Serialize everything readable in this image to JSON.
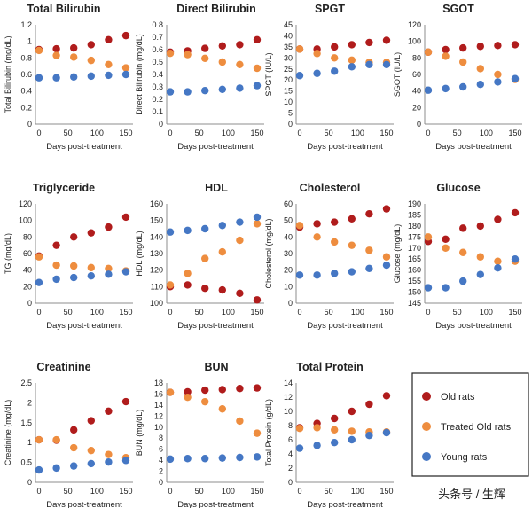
{
  "watermark": "头条号 / 生辉",
  "legend": [
    {
      "label": "Old rats",
      "color": "#b01c1c"
    },
    {
      "label": "Treated Old rats",
      "color": "#ee8d3f"
    },
    {
      "label": "Young rats",
      "color": "#4577c4"
    }
  ],
  "chart_data": [
    {
      "type": "scatter",
      "title": "Total Bilirubin",
      "xlabel": "Days post-treatment",
      "ylabel": "Total Bilirubin (mg/dL)",
      "xlim": [
        0,
        150
      ],
      "xticks": [
        0,
        50,
        100,
        150
      ],
      "ylim": [
        0,
        1.2
      ],
      "yticks": [
        0,
        0.2,
        0.4,
        0.6,
        0.8,
        1,
        1.2
      ],
      "yticklabels": [
        "0",
        "0.2",
        "0.4",
        "0.6",
        "0.8",
        "1",
        "1.2"
      ],
      "x": [
        0,
        30,
        60,
        90,
        120,
        150
      ],
      "series": [
        {
          "name": "Old rats",
          "values": [
            0.9,
            0.91,
            0.92,
            0.96,
            1.02,
            1.07
          ]
        },
        {
          "name": "Treated Old rats",
          "values": [
            0.89,
            0.83,
            0.81,
            0.77,
            0.72,
            0.68
          ]
        },
        {
          "name": "Young rats",
          "values": [
            0.56,
            0.56,
            0.57,
            0.58,
            0.59,
            0.6
          ]
        }
      ]
    },
    {
      "type": "scatter",
      "title": "Direct Bilirubin",
      "xlabel": "Days post-treatment",
      "ylabel": "Direct Bilirubin (mg/dL)",
      "xlim": [
        0,
        150
      ],
      "xticks": [
        0,
        50,
        100,
        150
      ],
      "ylim": [
        0,
        0.8
      ],
      "yticks": [
        0,
        0.1,
        0.2,
        0.3,
        0.4,
        0.5,
        0.6,
        0.7,
        0.8
      ],
      "yticklabels": [
        "0",
        "0.1",
        "0.2",
        "0.3",
        "0.4",
        "0.5",
        "0.6",
        "0.7",
        "0.8"
      ],
      "x": [
        0,
        30,
        60,
        90,
        120,
        150
      ],
      "series": [
        {
          "name": "Old rats",
          "values": [
            0.58,
            0.59,
            0.61,
            0.63,
            0.64,
            0.68
          ]
        },
        {
          "name": "Treated Old rats",
          "values": [
            0.57,
            0.56,
            0.53,
            0.5,
            0.48,
            0.45
          ]
        },
        {
          "name": "Young rats",
          "values": [
            0.26,
            0.26,
            0.27,
            0.28,
            0.29,
            0.31
          ]
        }
      ]
    },
    {
      "type": "scatter",
      "title": "SPGT",
      "xlabel": "Days post-treatment",
      "ylabel": "SPGT (IU/L)",
      "xlim": [
        0,
        150
      ],
      "xticks": [
        0,
        50,
        100,
        150
      ],
      "ylim": [
        0,
        45
      ],
      "yticks": [
        0,
        5,
        10,
        15,
        20,
        25,
        30,
        35,
        40,
        45
      ],
      "yticklabels": [
        "0",
        "5",
        "10",
        "15",
        "20",
        "25",
        "30",
        "35",
        "40",
        "45"
      ],
      "x": [
        0,
        30,
        60,
        90,
        120,
        150
      ],
      "series": [
        {
          "name": "Old rats",
          "values": [
            34,
            34,
            35,
            36,
            37,
            38
          ]
        },
        {
          "name": "Treated Old rats",
          "values": [
            34,
            32,
            30,
            29,
            28,
            28
          ]
        },
        {
          "name": "Young rats",
          "values": [
            22,
            23,
            24,
            26,
            27,
            27
          ]
        }
      ]
    },
    {
      "type": "scatter",
      "title": "SGOT",
      "xlabel": "Days post-treatment",
      "ylabel": "SGOT (IU/L)",
      "xlim": [
        0,
        150
      ],
      "xticks": [
        0,
        50,
        100,
        150
      ],
      "ylim": [
        0,
        120
      ],
      "yticks": [
        0,
        20,
        40,
        60,
        80,
        100,
        120
      ],
      "yticklabels": [
        "0",
        "20",
        "40",
        "60",
        "80",
        "100",
        "120"
      ],
      "x": [
        0,
        30,
        60,
        90,
        120,
        150
      ],
      "series": [
        {
          "name": "Old rats",
          "values": [
            87,
            90,
            92,
            94,
            95,
            96
          ]
        },
        {
          "name": "Treated Old rats",
          "values": [
            87,
            82,
            75,
            67,
            60,
            54
          ]
        },
        {
          "name": "Young rats",
          "values": [
            41,
            43,
            45,
            48,
            51,
            55
          ]
        }
      ]
    },
    {
      "type": "scatter",
      "title": "Triglyceride",
      "xlabel": "Days post-treatment",
      "ylabel": "TG (mg/dL)",
      "xlim": [
        0,
        150
      ],
      "xticks": [
        0,
        50,
        100,
        150
      ],
      "ylim": [
        0,
        120
      ],
      "yticks": [
        0,
        20,
        40,
        60,
        80,
        100,
        120
      ],
      "yticklabels": [
        "0",
        "20",
        "40",
        "60",
        "80",
        "100",
        "120"
      ],
      "x": [
        0,
        30,
        60,
        90,
        120,
        150
      ],
      "series": [
        {
          "name": "Old rats",
          "values": [
            57,
            70,
            80,
            85,
            92,
            104
          ]
        },
        {
          "name": "Treated Old rats",
          "values": [
            56,
            46,
            45,
            43,
            42,
            39
          ]
        },
        {
          "name": "Young rats",
          "values": [
            25,
            29,
            31,
            33,
            35,
            38
          ]
        }
      ]
    },
    {
      "type": "scatter",
      "title": "HDL",
      "xlabel": "Days post-treatment",
      "ylabel": "HDL (mg/dL)",
      "xlim": [
        0,
        150
      ],
      "xticks": [
        0,
        50,
        100,
        150
      ],
      "ylim": [
        100,
        160
      ],
      "yticks": [
        100,
        110,
        120,
        130,
        140,
        150,
        160
      ],
      "yticklabels": [
        "100",
        "110",
        "120",
        "130",
        "140",
        "150",
        "160"
      ],
      "x": [
        0,
        30,
        60,
        90,
        120,
        150
      ],
      "series": [
        {
          "name": "Old rats",
          "values": [
            110,
            111,
            109,
            108,
            106,
            102
          ]
        },
        {
          "name": "Treated Old rats",
          "values": [
            111,
            118,
            127,
            131,
            138,
            148
          ]
        },
        {
          "name": "Young rats",
          "values": [
            143,
            144,
            145,
            147,
            149,
            152
          ]
        }
      ]
    },
    {
      "type": "scatter",
      "title": "Cholesterol",
      "xlabel": "Days post-treatment",
      "ylabel": "Cholesterol (mg/dL)",
      "xlim": [
        0,
        150
      ],
      "xticks": [
        0,
        50,
        100,
        150
      ],
      "ylim": [
        0,
        60
      ],
      "yticks": [
        0,
        10,
        20,
        30,
        40,
        50,
        60
      ],
      "yticklabels": [
        "0",
        "10",
        "20",
        "30",
        "40",
        "50",
        "60"
      ],
      "x": [
        0,
        30,
        60,
        90,
        120,
        150
      ],
      "series": [
        {
          "name": "Old rats",
          "values": [
            46,
            48,
            49,
            51,
            54,
            57
          ]
        },
        {
          "name": "Treated Old rats",
          "values": [
            47,
            40,
            37,
            35,
            32,
            28
          ]
        },
        {
          "name": "Young rats",
          "values": [
            17,
            17,
            18,
            19,
            21,
            23
          ]
        }
      ]
    },
    {
      "type": "scatter",
      "title": "Glucose",
      "xlabel": "Days post-treatment",
      "ylabel": "Glucose (mg/dL)",
      "xlim": [
        0,
        150
      ],
      "xticks": [
        0,
        50,
        100,
        150
      ],
      "ylim": [
        145,
        190
      ],
      "yticks": [
        145,
        150,
        155,
        160,
        165,
        170,
        175,
        180,
        185,
        190
      ],
      "yticklabels": [
        "145",
        "150",
        "155",
        "160",
        "165",
        "170",
        "175",
        "180",
        "185",
        "190"
      ],
      "x": [
        0,
        30,
        60,
        90,
        120,
        150
      ],
      "series": [
        {
          "name": "Old rats",
          "values": [
            173,
            174,
            179,
            180,
            183,
            186
          ]
        },
        {
          "name": "Treated Old rats",
          "values": [
            175,
            170,
            168,
            166,
            164,
            164
          ]
        },
        {
          "name": "Young rats",
          "values": [
            152,
            152,
            155,
            158,
            161,
            165
          ]
        }
      ]
    },
    {
      "type": "scatter",
      "title": "Creatinine",
      "xlabel": "Days post-treatment",
      "ylabel": "Creatinine (mg/dL)",
      "xlim": [
        0,
        150
      ],
      "xticks": [
        0,
        50,
        100,
        150
      ],
      "ylim": [
        0,
        2.5
      ],
      "yticks": [
        0,
        0.5,
        1,
        1.5,
        2,
        2.5
      ],
      "yticklabels": [
        "0",
        "0.5",
        "1",
        "1.5",
        "2",
        "2.5"
      ],
      "x": [
        0,
        30,
        60,
        90,
        120,
        150
      ],
      "series": [
        {
          "name": "Old rats",
          "values": [
            1.07,
            1.06,
            1.32,
            1.55,
            1.79,
            2.03
          ]
        },
        {
          "name": "Treated Old rats",
          "values": [
            1.07,
            1.07,
            0.87,
            0.8,
            0.7,
            0.62
          ]
        },
        {
          "name": "Young rats",
          "values": [
            0.31,
            0.36,
            0.41,
            0.47,
            0.51,
            0.55
          ]
        }
      ]
    },
    {
      "type": "scatter",
      "title": "BUN",
      "xlabel": "Days post-treatment",
      "ylabel": "BUN (mg/dL)",
      "xlim": [
        0,
        150
      ],
      "xticks": [
        0,
        50,
        100,
        150
      ],
      "ylim": [
        0,
        18
      ],
      "yticks": [
        0,
        2,
        4,
        6,
        8,
        10,
        12,
        14,
        16,
        18
      ],
      "yticklabels": [
        "0",
        "2",
        "4",
        "6",
        "8",
        "10",
        "12",
        "14",
        "16",
        "18"
      ],
      "x": [
        0,
        30,
        60,
        90,
        120,
        150
      ],
      "series": [
        {
          "name": "Old rats",
          "values": [
            16.3,
            16.4,
            16.7,
            16.8,
            17.0,
            17.1
          ]
        },
        {
          "name": "Treated Old rats",
          "values": [
            16.3,
            15.4,
            14.6,
            13.3,
            11.1,
            8.9
          ]
        },
        {
          "name": "Young rats",
          "values": [
            4.2,
            4.3,
            4.3,
            4.4,
            4.5,
            4.6
          ]
        }
      ]
    },
    {
      "type": "scatter",
      "title": "Total Protein",
      "xlabel": "Days post-treatment",
      "ylabel": "Total Protein (g/dL)",
      "xlim": [
        0,
        150
      ],
      "xticks": [
        0,
        50,
        100,
        150
      ],
      "ylim": [
        0,
        14
      ],
      "yticks": [
        0,
        2,
        4,
        6,
        8,
        10,
        12,
        14
      ],
      "yticklabels": [
        "0",
        "2",
        "4",
        "6",
        "8",
        "10",
        "12",
        "14"
      ],
      "x": [
        0,
        30,
        60,
        90,
        120,
        150
      ],
      "series": [
        {
          "name": "Old rats",
          "values": [
            7.7,
            8.3,
            9.0,
            10.0,
            11.0,
            12.2
          ]
        },
        {
          "name": "Treated Old rats",
          "values": [
            7.6,
            7.7,
            7.4,
            7.2,
            7.1,
            7.1
          ]
        },
        {
          "name": "Young rats",
          "values": [
            4.8,
            5.2,
            5.6,
            6.0,
            6.6,
            7.0
          ]
        }
      ]
    }
  ]
}
